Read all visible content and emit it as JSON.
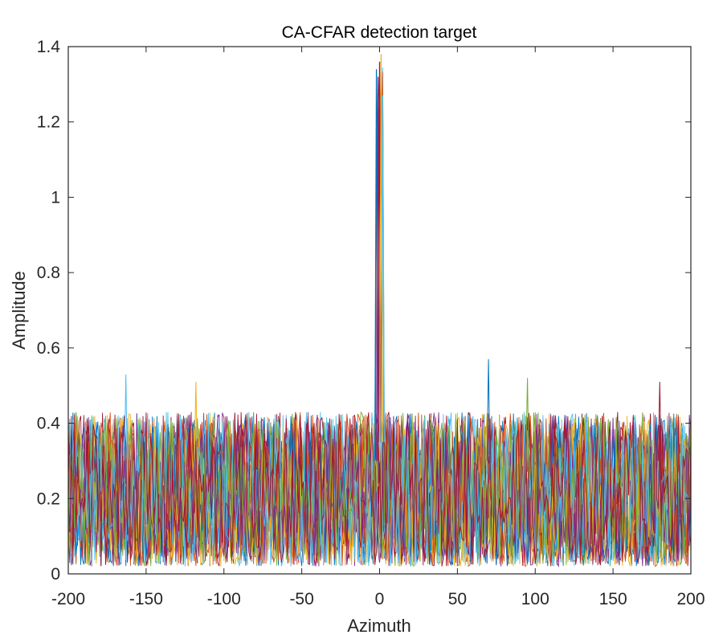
{
  "chart_data": {
    "type": "line",
    "title": "CA-CFAR detection target",
    "xlabel": "Azimuth",
    "ylabel": "Amplitude",
    "xlim": [
      -200,
      200
    ],
    "ylim": [
      0,
      1.4
    ],
    "xticks": [
      -200,
      -150,
      -100,
      -50,
      0,
      50,
      100,
      150,
      200
    ],
    "xtick_labels": [
      "-200",
      "-150",
      "-100",
      "-50",
      "0",
      "50",
      "100",
      "150",
      "200"
    ],
    "yticks": [
      0,
      0.2,
      0.4,
      0.6,
      0.8,
      1,
      1.2,
      1.4
    ],
    "ytick_labels": [
      "0",
      "0.2",
      "0.4",
      "0.6",
      "0.8",
      "1",
      "1.2",
      "1.4"
    ],
    "grid": false,
    "legend": "none",
    "description_of_series": "Many overlapping noise traces across azimuth -200 to 200 with amplitude mostly 0.02–0.45 and occasional spikes near 0.5–0.57; a sharp target peak at azimuth ≈ 0 reaching ≈ 1.32–1.38.",
    "noise_floor_range": [
      0.02,
      0.45
    ],
    "noise_spikes": [
      {
        "x": -163,
        "y": 0.53
      },
      {
        "x": 70,
        "y": 0.57
      },
      {
        "x": -118,
        "y": 0.51
      },
      {
        "x": 95,
        "y": 0.52
      },
      {
        "x": 180,
        "y": 0.51
      }
    ],
    "target_peaks": [
      {
        "x": -2,
        "y": 1.34
      },
      {
        "x": -1,
        "y": 1.32
      },
      {
        "x": 0,
        "y": 1.36
      },
      {
        "x": 1,
        "y": 1.38
      },
      {
        "x": 2,
        "y": 1.27
      }
    ],
    "series_colors": [
      "#0072BD",
      "#D95319",
      "#EDB120",
      "#7E2F8E",
      "#77AC30",
      "#4DBEEE",
      "#A2142F"
    ]
  }
}
